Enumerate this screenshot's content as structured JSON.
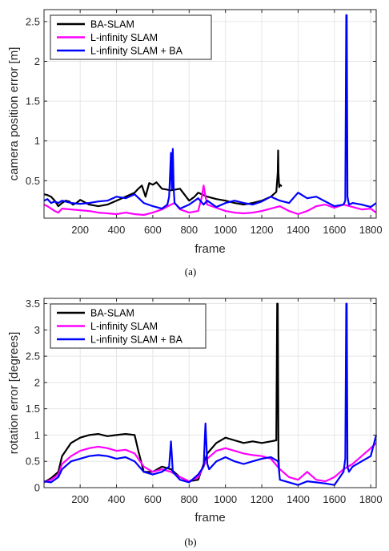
{
  "colors": {
    "BA-SLAM": "#000000",
    "L-infinity SLAM": "#ff00ff",
    "L-infinity SLAM + BA": "#0000ff"
  },
  "chart_data": [
    {
      "type": "line",
      "caption": "(a)",
      "xlabel": "frame",
      "ylabel": "camera position error [m]",
      "xlim": [
        1,
        1830
      ],
      "ylim": [
        0.03,
        2.65
      ],
      "xticks": [
        200,
        400,
        600,
        800,
        1000,
        1200,
        1400,
        1600,
        1800
      ],
      "yticks": [
        0.5,
        1,
        1.5,
        2,
        2.5
      ],
      "ytick_labels": [
        "0.5",
        "1",
        "1.5",
        "2",
        "2.5"
      ],
      "grid": true,
      "legend": "top-left",
      "series": [
        {
          "name": "BA-SLAM",
          "color": "#000000",
          "width": 2.2,
          "x": [
            1,
            20,
            40,
            60,
            80,
            100,
            120,
            140,
            160,
            180,
            200,
            250,
            300,
            350,
            400,
            450,
            500,
            520,
            540,
            560,
            580,
            600,
            620,
            650,
            700,
            750,
            800,
            830,
            850,
            880,
            900,
            950,
            1000,
            1050,
            1100,
            1150,
            1200,
            1250,
            1280,
            1288,
            1290,
            1292,
            1296,
            1300,
            1310
          ],
          "y": [
            0.33,
            0.32,
            0.3,
            0.25,
            0.18,
            0.22,
            0.25,
            0.24,
            0.2,
            0.22,
            0.26,
            0.2,
            0.18,
            0.2,
            0.25,
            0.3,
            0.35,
            0.4,
            0.44,
            0.3,
            0.47,
            0.45,
            0.48,
            0.4,
            0.38,
            0.4,
            0.25,
            0.3,
            0.35,
            0.32,
            0.3,
            0.27,
            0.25,
            0.22,
            0.2,
            0.22,
            0.25,
            0.3,
            0.36,
            0.6,
            0.88,
            0.6,
            0.42,
            0.45,
            0.43
          ]
        },
        {
          "name": "L-infinity SLAM",
          "color": "#ff00ff",
          "width": 2.2,
          "x": [
            1,
            20,
            40,
            60,
            80,
            100,
            150,
            200,
            250,
            300,
            350,
            400,
            450,
            500,
            550,
            600,
            650,
            700,
            720,
            750,
            800,
            850,
            870,
            880,
            890,
            900,
            950,
            1000,
            1050,
            1100,
            1150,
            1200,
            1250,
            1300,
            1350,
            1400,
            1450,
            1500,
            1550,
            1600,
            1650,
            1700,
            1750,
            1800,
            1830
          ],
          "y": [
            0.2,
            0.18,
            0.15,
            0.12,
            0.1,
            0.15,
            0.14,
            0.13,
            0.12,
            0.1,
            0.09,
            0.08,
            0.1,
            0.08,
            0.07,
            0.1,
            0.14,
            0.2,
            0.22,
            0.14,
            0.1,
            0.12,
            0.3,
            0.44,
            0.3,
            0.2,
            0.16,
            0.12,
            0.1,
            0.09,
            0.1,
            0.12,
            0.15,
            0.18,
            0.12,
            0.08,
            0.12,
            0.18,
            0.2,
            0.16,
            0.2,
            0.17,
            0.14,
            0.15,
            0.1
          ]
        },
        {
          "name": "L-infinity SLAM + BA",
          "color": "#0000ff",
          "width": 2.2,
          "x": [
            1,
            20,
            40,
            60,
            80,
            100,
            150,
            200,
            250,
            300,
            350,
            400,
            450,
            500,
            550,
            600,
            650,
            680,
            690,
            700,
            705,
            710,
            715,
            720,
            750,
            800,
            850,
            880,
            900,
            950,
            1000,
            1050,
            1100,
            1150,
            1200,
            1250,
            1300,
            1350,
            1400,
            1450,
            1500,
            1550,
            1600,
            1650,
            1660,
            1665,
            1668,
            1672,
            1680,
            1700,
            1750,
            1800,
            1830
          ],
          "y": [
            0.25,
            0.27,
            0.22,
            0.24,
            0.22,
            0.25,
            0.22,
            0.21,
            0.22,
            0.24,
            0.25,
            0.3,
            0.28,
            0.33,
            0.22,
            0.18,
            0.15,
            0.2,
            0.3,
            0.85,
            0.4,
            0.9,
            0.4,
            0.22,
            0.15,
            0.2,
            0.28,
            0.2,
            0.25,
            0.17,
            0.22,
            0.25,
            0.22,
            0.2,
            0.24,
            0.3,
            0.25,
            0.22,
            0.35,
            0.28,
            0.3,
            0.24,
            0.18,
            0.2,
            0.25,
            2.58,
            2.58,
            0.3,
            0.2,
            0.22,
            0.2,
            0.17,
            0.22
          ]
        }
      ]
    },
    {
      "type": "line",
      "caption": "(b)",
      "xlabel": "frame",
      "ylabel": "rotation error [degrees]",
      "xlim": [
        1,
        1830
      ],
      "ylim": [
        0,
        3.6
      ],
      "xticks": [
        200,
        400,
        600,
        800,
        1000,
        1200,
        1400,
        1600,
        1800
      ],
      "yticks": [
        0,
        0.5,
        1,
        1.5,
        2,
        2.5,
        3,
        3.5
      ],
      "ytick_labels": [
        "0",
        "0.5",
        "1",
        "1.5",
        "2",
        "2.5",
        "3",
        "3.5"
      ],
      "grid": true,
      "legend": "top-left",
      "series": [
        {
          "name": "BA-SLAM",
          "color": "#000000",
          "width": 2.2,
          "x": [
            1,
            40,
            80,
            100,
            150,
            200,
            250,
            300,
            350,
            400,
            450,
            500,
            520,
            550,
            600,
            650,
            700,
            750,
            800,
            850,
            900,
            950,
            1000,
            1050,
            1100,
            1150,
            1200,
            1250,
            1280,
            1285,
            1288,
            1292,
            1296
          ],
          "y": [
            0.1,
            0.18,
            0.3,
            0.6,
            0.85,
            0.95,
            1.0,
            1.02,
            0.98,
            1.0,
            1.02,
            1.0,
            0.7,
            0.3,
            0.3,
            0.4,
            0.35,
            0.2,
            0.12,
            0.15,
            0.65,
            0.85,
            0.95,
            0.9,
            0.85,
            0.88,
            0.85,
            0.88,
            0.9,
            3.5,
            3.5,
            0.6,
            0.3
          ]
        },
        {
          "name": "L-infinity SLAM",
          "color": "#ff00ff",
          "width": 2.2,
          "x": [
            1,
            40,
            80,
            100,
            150,
            200,
            250,
            300,
            350,
            400,
            450,
            500,
            550,
            600,
            650,
            700,
            750,
            800,
            850,
            900,
            950,
            1000,
            1050,
            1100,
            1150,
            1200,
            1250,
            1300,
            1350,
            1400,
            1450,
            1500,
            1550,
            1600,
            1650,
            1700,
            1750,
            1800,
            1830
          ],
          "y": [
            0.1,
            0.15,
            0.25,
            0.45,
            0.6,
            0.7,
            0.75,
            0.78,
            0.75,
            0.7,
            0.72,
            0.65,
            0.4,
            0.3,
            0.35,
            0.3,
            0.2,
            0.12,
            0.2,
            0.55,
            0.7,
            0.75,
            0.7,
            0.65,
            0.62,
            0.6,
            0.55,
            0.35,
            0.2,
            0.15,
            0.3,
            0.15,
            0.12,
            0.2,
            0.35,
            0.45,
            0.6,
            0.75,
            0.85
          ]
        },
        {
          "name": "L-infinity SLAM + BA",
          "color": "#0000ff",
          "width": 2.2,
          "x": [
            1,
            40,
            80,
            100,
            150,
            200,
            250,
            300,
            350,
            400,
            450,
            500,
            550,
            600,
            650,
            690,
            700,
            710,
            750,
            800,
            850,
            880,
            890,
            900,
            910,
            950,
            1000,
            1050,
            1100,
            1150,
            1200,
            1250,
            1290,
            1300,
            1350,
            1400,
            1450,
            1500,
            1550,
            1600,
            1650,
            1660,
            1665,
            1668,
            1672,
            1680,
            1700,
            1750,
            1800,
            1830
          ],
          "y": [
            0.12,
            0.1,
            0.2,
            0.35,
            0.5,
            0.55,
            0.6,
            0.62,
            0.6,
            0.55,
            0.58,
            0.5,
            0.3,
            0.25,
            0.3,
            0.4,
            0.88,
            0.3,
            0.15,
            0.1,
            0.25,
            0.4,
            1.22,
            0.45,
            0.35,
            0.5,
            0.58,
            0.5,
            0.45,
            0.5,
            0.55,
            0.58,
            0.5,
            0.15,
            0.1,
            0.05,
            0.12,
            0.1,
            0.08,
            0.05,
            0.3,
            0.55,
            3.5,
            3.5,
            0.4,
            0.3,
            0.4,
            0.5,
            0.6,
            1.0
          ]
        }
      ]
    }
  ]
}
